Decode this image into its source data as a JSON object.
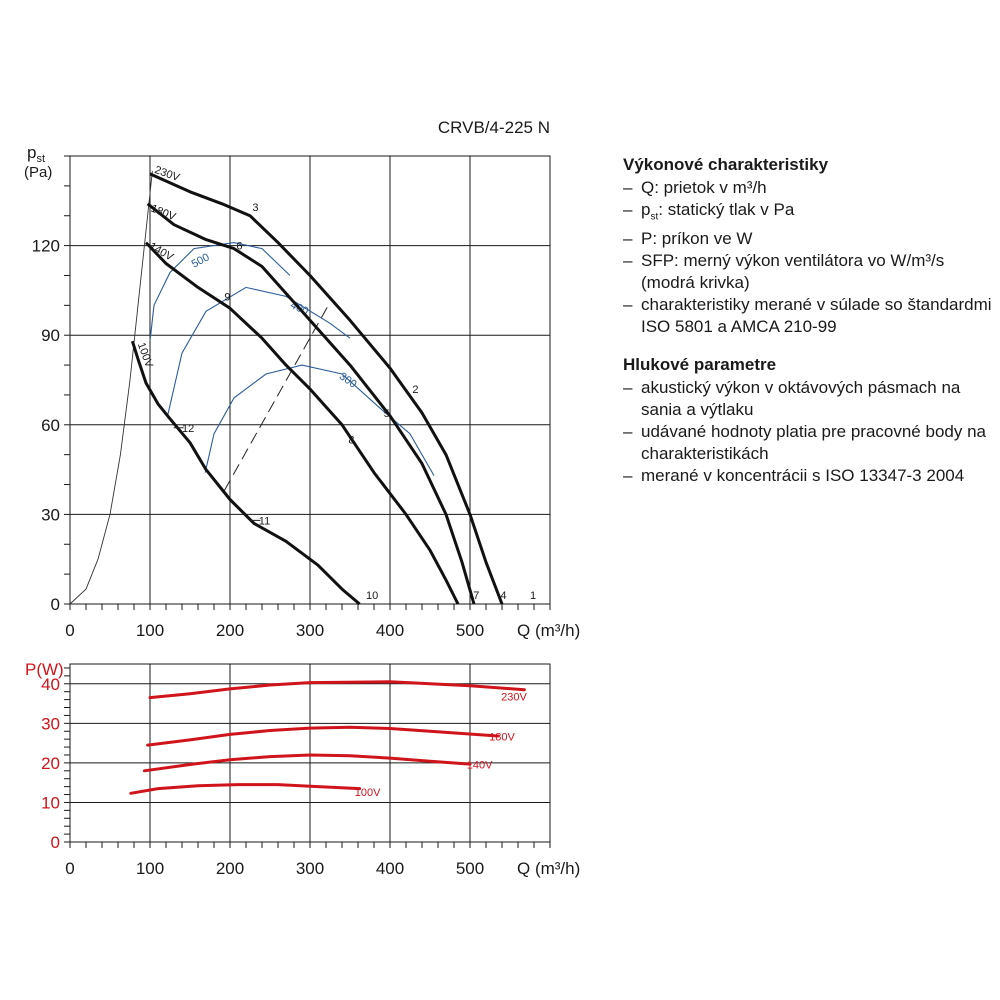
{
  "chart_data": [
    {
      "type": "line",
      "title": "CRVB/4-225 N",
      "xlabel": "Q (m³/h)",
      "ylabel_main": "p",
      "ylabel_sub": "st",
      "ylabel_unit": "(Pa)",
      "xlim": [
        0,
        600
      ],
      "ylim": [
        0,
        150
      ],
      "xticks": [
        "0",
        "100",
        "200",
        "300",
        "400",
        "500"
      ],
      "yticks": [
        "0",
        "30",
        "60",
        "90",
        "120"
      ],
      "grid": true,
      "speed_curves": [
        {
          "name": "230V",
          "points": [
            [
              100,
              144
            ],
            [
              150,
              138
            ],
            [
              190,
              134
            ],
            [
              225,
              130
            ],
            [
              260,
              121
            ],
            [
              300,
              110
            ],
            [
              350,
              95
            ],
            [
              400,
              79
            ],
            [
              440,
              64
            ],
            [
              470,
              50
            ],
            [
              500,
              30
            ],
            [
              520,
              14
            ],
            [
              540,
              0
            ]
          ]
        },
        {
          "name": "180V",
          "points": [
            [
              97,
              134
            ],
            [
              130,
              127
            ],
            [
              170,
              122
            ],
            [
              205,
              119
            ],
            [
              240,
              113
            ],
            [
              270,
              104
            ],
            [
              300,
              95
            ],
            [
              350,
              80
            ],
            [
              400,
              63
            ],
            [
              440,
              47
            ],
            [
              470,
              30
            ],
            [
              490,
              14
            ],
            [
              505,
              0
            ]
          ]
        },
        {
          "name": "140V",
          "points": [
            [
              95,
              121
            ],
            [
              120,
              114
            ],
            [
              160,
              106
            ],
            [
              200,
              99
            ],
            [
              240,
              89
            ],
            [
              270,
              80
            ],
            [
              300,
              72
            ],
            [
              340,
              60
            ],
            [
              380,
              44
            ],
            [
              420,
              30
            ],
            [
              450,
              18
            ],
            [
              470,
              8
            ],
            [
              485,
              0
            ]
          ]
        },
        {
          "name": "100V",
          "points": [
            [
              78,
              88
            ],
            [
              85,
              82
            ],
            [
              95,
              74
            ],
            [
              110,
              67
            ],
            [
              125,
              62
            ],
            [
              150,
              54
            ],
            [
              170,
              45
            ],
            [
              200,
              35
            ],
            [
              230,
              27
            ],
            [
              270,
              21
            ],
            [
              310,
              13
            ],
            [
              340,
              5
            ],
            [
              362,
              0
            ]
          ]
        }
      ],
      "point_labels": [
        {
          "label": "1",
          "x": 575,
          "y": 3
        },
        {
          "label": "2",
          "x": 428,
          "y": 72
        },
        {
          "label": "3",
          "x": 228,
          "y": 133
        },
        {
          "label": "4",
          "x": 538,
          "y": 3
        },
        {
          "label": "5",
          "x": 392,
          "y": 64
        },
        {
          "label": "6",
          "x": 208,
          "y": 120
        },
        {
          "label": "7",
          "x": 504,
          "y": 3
        },
        {
          "label": "8",
          "x": 348,
          "y": 55
        },
        {
          "label": "9",
          "x": 193,
          "y": 103
        },
        {
          "label": "10",
          "x": 370,
          "y": 3
        },
        {
          "label": "11",
          "x": 236,
          "y": 28
        },
        {
          "label": "12",
          "x": 140,
          "y": 59
        }
      ],
      "voltage_labels": [
        "230V",
        "180V",
        "140V",
        "100V"
      ],
      "system_curve": {
        "points": [
          [
            0,
            0
          ],
          [
            20,
            5
          ],
          [
            35,
            15
          ],
          [
            50,
            30
          ],
          [
            63,
            50
          ],
          [
            75,
            75
          ],
          [
            85,
            100
          ],
          [
            95,
            125
          ],
          [
            103,
            145
          ]
        ]
      },
      "sfp_curves": [
        {
          "name": "500",
          "points": [
            [
              100,
              88
            ],
            [
              105,
              100
            ],
            [
              125,
              111
            ],
            [
              155,
              119
            ],
            [
              205,
              121
            ],
            [
              240,
              119
            ],
            [
              275,
              110
            ]
          ]
        },
        {
          "name": "400",
          "points": [
            [
              122,
              63
            ],
            [
              140,
              84
            ],
            [
              170,
              98
            ],
            [
              220,
              106
            ],
            [
              270,
              103
            ],
            [
              325,
              94
            ],
            [
              350,
              89
            ]
          ]
        },
        {
          "name": "300",
          "points": [
            [
              169,
              44
            ],
            [
              180,
              57
            ],
            [
              205,
              69
            ],
            [
              245,
              77
            ],
            [
              290,
              80
            ],
            [
              340,
              77
            ],
            [
              390,
              65
            ],
            [
              425,
              57
            ],
            [
              455,
              43
            ]
          ]
        }
      ],
      "dashed_line": {
        "points": [
          [
            193,
            38
          ],
          [
            325,
            101
          ]
        ]
      },
      "annotation": "10"
    },
    {
      "type": "line",
      "ylabel": "P(W)",
      "xlabel": "Q (m³/h)",
      "xlim": [
        0,
        600
      ],
      "ylim": [
        0,
        45
      ],
      "xticks": [
        "0",
        "100",
        "200",
        "300",
        "400",
        "500"
      ],
      "yticks": [
        "0",
        "10",
        "20",
        "30",
        "40"
      ],
      "grid": true,
      "series": [
        {
          "name": "230V",
          "points": [
            [
              100,
              36.5
            ],
            [
              150,
              37.5
            ],
            [
              200,
              38.7
            ],
            [
              250,
              39.7
            ],
            [
              300,
              40.3
            ],
            [
              400,
              40.5
            ],
            [
              500,
              39.5
            ],
            [
              568,
              38.5
            ]
          ]
        },
        {
          "name": "180V",
          "points": [
            [
              97,
              24.5
            ],
            [
              150,
              25.8
            ],
            [
              200,
              27.2
            ],
            [
              250,
              28.2
            ],
            [
              300,
              28.8
            ],
            [
              350,
              29.0
            ],
            [
              400,
              28.7
            ],
            [
              450,
              28.0
            ],
            [
              535,
              26.8
            ]
          ]
        },
        {
          "name": "140V",
          "points": [
            [
              93,
              18.0
            ],
            [
              150,
              19.6
            ],
            [
              200,
              20.8
            ],
            [
              250,
              21.6
            ],
            [
              300,
              22.0
            ],
            [
              350,
              21.8
            ],
            [
              400,
              21.2
            ],
            [
              450,
              20.4
            ],
            [
              500,
              19.7
            ]
          ]
        },
        {
          "name": "100V",
          "points": [
            [
              76,
              12.3
            ],
            [
              110,
              13.5
            ],
            [
              160,
              14.2
            ],
            [
              210,
              14.5
            ],
            [
              260,
              14.5
            ],
            [
              310,
              14.0
            ],
            [
              362,
              13.5
            ]
          ]
        }
      ]
    }
  ],
  "legend": {
    "section1_title": "Výkonové charakteristiky",
    "section1_items": [
      "Q: prietok v m³/h",
      "pst: statický tlak v Pa",
      "P: príkon ve W",
      "SFP: merný výkon ventilátora vo W/m³/s (modrá krivka)",
      "charakteristiky merané v súlade so štandardmi ISO 5801 a AMCA 210-99"
    ],
    "section2_title": "Hlukové parametre",
    "section2_items": [
      "akustický výkon v oktávových pásmach na sania a výtlaku",
      "udávané hodnoty platia pre pracovné body na charakteristikách",
      "merané v koncentrácii s ISO 13347-3 2004"
    ]
  },
  "colors": {
    "curve": "#111111",
    "sfp": "#2c5d9b",
    "power": "#d0141c",
    "grid": "#1a1a1a"
  }
}
